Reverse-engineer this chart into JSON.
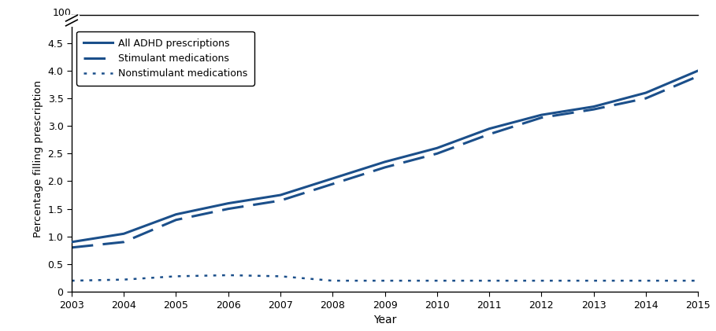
{
  "years": [
    2003,
    2004,
    2005,
    2006,
    2007,
    2008,
    2009,
    2010,
    2011,
    2012,
    2013,
    2014,
    2015
  ],
  "all_adhd": [
    0.9,
    1.05,
    1.4,
    1.6,
    1.75,
    2.05,
    2.35,
    2.6,
    2.95,
    3.2,
    3.35,
    3.6,
    4.0
  ],
  "stimulant": [
    0.8,
    0.9,
    1.3,
    1.5,
    1.65,
    1.95,
    2.25,
    2.5,
    2.85,
    3.15,
    3.3,
    3.5,
    3.9
  ],
  "nonstimulant": [
    0.2,
    0.22,
    0.28,
    0.3,
    0.28,
    0.2,
    0.2,
    0.2,
    0.2,
    0.2,
    0.2,
    0.2,
    0.2
  ],
  "line_color": "#1B4F8A",
  "ylabel": "Percentage filling prescription",
  "xlabel": "Year",
  "ylim_data": 4.8,
  "yticks": [
    0,
    0.5,
    1.0,
    1.5,
    2.0,
    2.5,
    3.0,
    3.5,
    4.0,
    4.5
  ],
  "ytick_labels": [
    "0",
    "0.5",
    "1.0",
    "1.5",
    "2.0",
    "2.5",
    "3.0",
    "3.5",
    "4.0",
    "4.5"
  ],
  "legend_labels": [
    "All ADHD prescriptions",
    "Stimulant medications",
    "Nonstimulant medications"
  ],
  "figsize": [
    9.09,
    4.21
  ],
  "dpi": 100
}
